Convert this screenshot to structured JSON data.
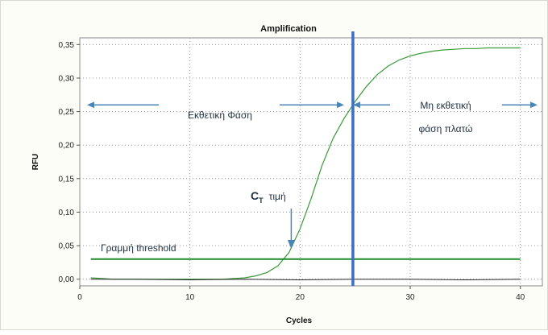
{
  "chart_data": {
    "type": "line",
    "title": "Amplification",
    "xlabel": "Cycles",
    "ylabel": "RFU",
    "xlim": [
      0,
      42
    ],
    "ylim": [
      -0.01,
      0.36
    ],
    "x_ticks": [
      0,
      10,
      20,
      30,
      40
    ],
    "y_ticks": [
      0.0,
      0.05,
      0.1,
      0.15,
      0.2,
      0.25,
      0.3,
      0.35
    ],
    "x_tick_labels": [
      "0",
      "10",
      "20",
      "30",
      "40"
    ],
    "y_tick_labels": [
      "0,00",
      "0,05",
      "0,10",
      "0,15",
      "0,20",
      "0,25",
      "0,30",
      "0,35"
    ],
    "grid": "dotted",
    "series": [
      {
        "color": "#3a9a3a",
        "x": [
          1,
          2,
          3,
          4,
          5,
          6,
          7,
          8,
          9,
          10,
          11,
          12,
          13,
          14,
          15,
          16,
          17,
          18,
          19,
          20,
          21,
          22,
          23,
          24,
          25,
          26,
          27,
          28,
          29,
          30,
          31,
          32,
          33,
          34,
          35,
          36,
          37,
          38,
          39,
          40
        ],
        "y": [
          0.002,
          0.001,
          0.0,
          0.0,
          0.0,
          0.0,
          0.0,
          0.0,
          0.0,
          0.0,
          0.0,
          0.0,
          0.0,
          0.001,
          0.002,
          0.005,
          0.01,
          0.02,
          0.04,
          0.075,
          0.12,
          0.17,
          0.21,
          0.24,
          0.265,
          0.287,
          0.305,
          0.318,
          0.327,
          0.333,
          0.337,
          0.34,
          0.342,
          0.343,
          0.344,
          0.344,
          0.345,
          0.345,
          0.345,
          0.345
        ]
      },
      {
        "color": "#2a2a2a",
        "x": [
          1,
          5,
          10,
          15,
          20,
          25,
          30,
          35,
          40
        ],
        "y": [
          0.0,
          0.0,
          -0.001,
          0.0,
          -0.001,
          0.0,
          0.0,
          -0.001,
          0.0
        ]
      }
    ],
    "threshold": {
      "label": "Γραμμή threshold",
      "y": 0.03,
      "color": "#1f8a2a"
    },
    "ct_line": {
      "x": 24.8,
      "color": "#3b6fc4"
    },
    "annotations": {
      "exp_phase": "Εκθετική Φάση",
      "plateau_line1": "Μη εκθετική",
      "plateau_line2": "φάση πλατώ",
      "ct_main": "C",
      "ct_sub": "T",
      "ct_word": "τιμή"
    }
  }
}
